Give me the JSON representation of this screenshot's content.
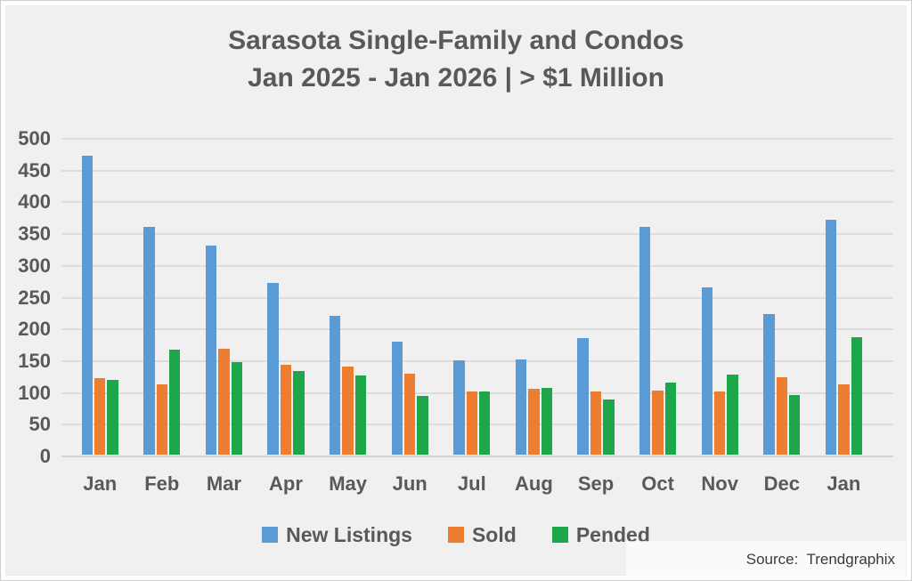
{
  "title": {
    "line1": "Sarasota Single-Family and Condos",
    "line2": "Jan 2025 - Jan 2026 | > $1 Million"
  },
  "source": "Source:  Trendgraphix",
  "colors": {
    "background": "#f0f0f1",
    "gridline": "#dddddd",
    "axis_text": "#595959",
    "title_text": "#595959",
    "new_listings": "#5B9BD5",
    "sold": "#ED7D31",
    "pended": "#1EA64B"
  },
  "chart_data": {
    "type": "bar",
    "title": "Sarasota Single-Family and Condos Jan 2025 - Jan 2026 | > $1 Million",
    "categories": [
      "Jan",
      "Feb",
      "Mar",
      "Apr",
      "May",
      "Jun",
      "Jul",
      "Aug",
      "Sep",
      "Oct",
      "Nov",
      "Dec",
      "Jan"
    ],
    "series": [
      {
        "name": "New Listings",
        "color": "#5B9BD5",
        "values": [
          470,
          358,
          329,
          270,
          218,
          178,
          149,
          150,
          183,
          358,
          263,
          221,
          370
        ]
      },
      {
        "name": "Sold",
        "color": "#ED7D31",
        "values": [
          120,
          110,
          166,
          141,
          138,
          127,
          100,
          104,
          100,
          101,
          99,
          122,
          110
        ]
      },
      {
        "name": "Pended",
        "color": "#1EA64B",
        "values": [
          117,
          165,
          146,
          132,
          124,
          92,
          100,
          105,
          87,
          113,
          126,
          94,
          185
        ]
      }
    ],
    "xlabel": "",
    "ylabel": "",
    "ylim": [
      0,
      500
    ],
    "ytick_step": 50,
    "grid": true,
    "legend_position": "bottom",
    "legend_entries": [
      "New Listings",
      "Sold",
      "Pended"
    ]
  }
}
